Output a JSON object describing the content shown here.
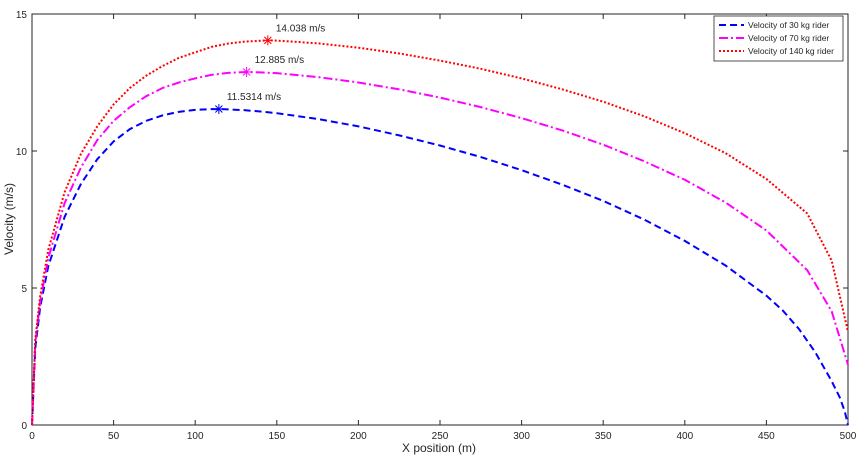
{
  "chart_data": {
    "type": "line",
    "title": "",
    "xlabel": "X position (m)",
    "ylabel": "Velocity (m/s)",
    "xlim": [
      0,
      500
    ],
    "ylim": [
      0,
      15
    ],
    "xticks": [
      0,
      50,
      100,
      150,
      200,
      250,
      300,
      350,
      400,
      450,
      500
    ],
    "yticks": [
      0,
      5,
      10,
      15
    ],
    "grid": false,
    "legend_position": "top-right",
    "series": [
      {
        "name": "Velocity of 30 kg rider",
        "color": "#0000ff",
        "style": "dashed",
        "x": [
          0,
          2,
          5,
          10,
          20,
          30,
          40,
          50,
          60,
          70,
          80,
          90,
          100,
          110,
          114.5,
          120,
          130,
          140,
          150,
          175,
          200,
          225,
          250,
          275,
          300,
          325,
          350,
          375,
          400,
          425,
          450,
          460,
          470,
          480,
          490,
          495,
          498,
          500
        ],
        "y": [
          0,
          2.8,
          4.3,
          5.8,
          7.6,
          8.8,
          9.7,
          10.35,
          10.8,
          11.1,
          11.3,
          11.43,
          11.5,
          11.53,
          11.53,
          11.52,
          11.49,
          11.44,
          11.38,
          11.17,
          10.9,
          10.57,
          10.2,
          9.78,
          9.3,
          8.77,
          8.18,
          7.5,
          6.72,
          5.82,
          4.72,
          4.18,
          3.5,
          2.65,
          1.6,
          1.0,
          0.5,
          0.0
        ]
      },
      {
        "name": "Velocity of 70 kg rider",
        "color": "#ff00ff",
        "style": "dash-dot",
        "x": [
          0,
          2,
          5,
          10,
          20,
          30,
          40,
          50,
          60,
          70,
          80,
          90,
          100,
          110,
          120,
          131.5,
          140,
          150,
          175,
          200,
          225,
          250,
          275,
          300,
          325,
          350,
          375,
          400,
          425,
          450,
          475,
          490,
          500
        ],
        "y": [
          0,
          3.0,
          4.5,
          6.1,
          8.1,
          9.4,
          10.4,
          11.1,
          11.6,
          12.0,
          12.3,
          12.5,
          12.65,
          12.78,
          12.85,
          12.885,
          12.87,
          12.84,
          12.7,
          12.5,
          12.25,
          11.95,
          11.6,
          11.2,
          10.75,
          10.23,
          9.63,
          8.95,
          8.12,
          7.1,
          5.65,
          4.15,
          2.2
        ]
      },
      {
        "name": "Velocity of 140 kg rider",
        "color": "#ff0000",
        "style": "dotted",
        "x": [
          0,
          2,
          5,
          10,
          20,
          30,
          40,
          50,
          60,
          70,
          80,
          90,
          100,
          110,
          120,
          130,
          144.5,
          150,
          175,
          200,
          225,
          250,
          275,
          300,
          325,
          350,
          375,
          400,
          425,
          450,
          475,
          490,
          500
        ],
        "y": [
          0,
          3.1,
          4.7,
          6.4,
          8.5,
          9.9,
          10.9,
          11.7,
          12.3,
          12.75,
          13.1,
          13.4,
          13.6,
          13.8,
          13.92,
          13.99,
          14.038,
          14.03,
          13.93,
          13.77,
          13.56,
          13.3,
          13.0,
          12.65,
          12.25,
          11.8,
          11.27,
          10.65,
          9.92,
          8.98,
          7.72,
          6.0,
          3.4
        ]
      }
    ],
    "annotations": [
      {
        "series": 0,
        "x": 114.5,
        "y": 11.5314,
        "marker": "*",
        "label": "11.5314 m/s"
      },
      {
        "series": 1,
        "x": 131.5,
        "y": 12.885,
        "marker": "*",
        "label": "12.885 m/s"
      },
      {
        "series": 2,
        "x": 144.5,
        "y": 14.038,
        "marker": "*",
        "label": "14.038 m/s"
      }
    ]
  }
}
